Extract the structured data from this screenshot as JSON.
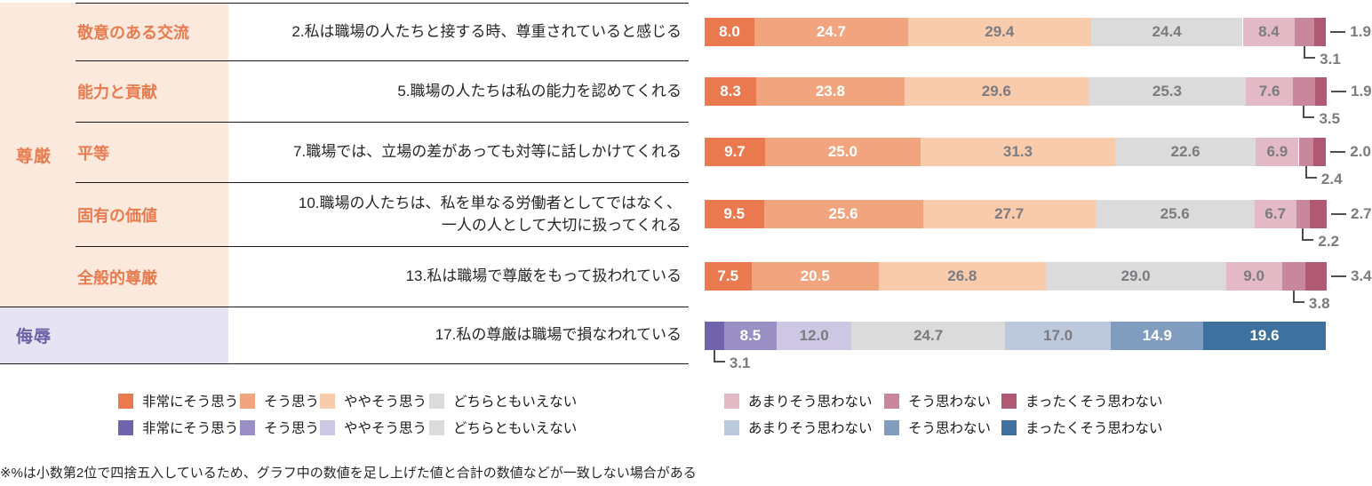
{
  "groups": [
    {
      "label": "尊厳",
      "text_color": "#E87B50",
      "bg_color": "#FBE9DD"
    },
    {
      "label": "侮辱",
      "text_color": "#6C5FA7",
      "bg_color": "#E6E3F2"
    }
  ],
  "chart_data": {
    "type": "bar",
    "orientation": "horizontal-stacked",
    "unit": "%",
    "answer_scale": [
      "非常にそう思う",
      "そう思う",
      "ややそう思う",
      "どちらともいえない",
      "あまりそう思わない",
      "そう思わない",
      "まったくそう思わない"
    ],
    "palettes": {
      "dignity": [
        "#EB7950",
        "#F2A47E",
        "#F8CBAD",
        "#DBDBDB",
        "#E2B9C4",
        "#C8879D",
        "#B15873"
      ],
      "insult": [
        "#7063AB",
        "#9A8FC5",
        "#CEC7E4",
        "#DBDBDB",
        "#BCC9DC",
        "#809CBF",
        "#3F719E"
      ]
    },
    "rows": [
      {
        "group": "尊厳",
        "subcategory": "敬意のある交流",
        "question": "2.私は職場の人たちと接する時、尊重されていると感じる",
        "palette": "dignity",
        "values": [
          8.0,
          24.7,
          29.4,
          24.4,
          8.4,
          3.1,
          1.9
        ],
        "callout_below_index": 5,
        "callout_right_index": 6
      },
      {
        "group": "尊厳",
        "subcategory": "能力と貢献",
        "question": "5.職場の人たちは私の能力を認めてくれる",
        "palette": "dignity",
        "values": [
          8.3,
          23.8,
          29.6,
          25.3,
          7.6,
          3.5,
          1.9
        ],
        "callout_below_index": 5,
        "callout_right_index": 6
      },
      {
        "group": "尊厳",
        "subcategory": "平等",
        "question": "7.職場では、立場の差があっても対等に話しかけてくれる",
        "palette": "dignity",
        "values": [
          9.7,
          25.0,
          31.3,
          22.6,
          6.9,
          2.4,
          2.0
        ],
        "callout_below_index": 5,
        "callout_right_index": 6
      },
      {
        "group": "尊厳",
        "subcategory": "固有の価値",
        "question": "10.職場の人たちは、私を単なる労働者としてではなく、\n一人の人として大切に扱ってくれる",
        "palette": "dignity",
        "values": [
          9.5,
          25.6,
          27.7,
          25.6,
          6.7,
          2.2,
          2.7
        ],
        "callout_below_index": 5,
        "callout_right_index": 6
      },
      {
        "group": "尊厳",
        "subcategory": "全般的尊厳",
        "question": "13.私は職場で尊厳をもって扱われている",
        "palette": "dignity",
        "values": [
          7.5,
          20.5,
          26.8,
          29.0,
          9.0,
          3.8,
          3.4
        ],
        "callout_below_index": 5,
        "callout_right_index": 6
      },
      {
        "group": "侮辱",
        "subcategory": "",
        "question": "17.私の尊厳は職場で損なわれている",
        "palette": "insult",
        "values": [
          3.1,
          8.5,
          12.0,
          24.7,
          17.0,
          14.9,
          19.6
        ],
        "callout_below_index": 0,
        "callout_right_index": null
      }
    ]
  },
  "legend": {
    "rows": [
      {
        "palette": "dignity"
      },
      {
        "palette": "insult"
      }
    ]
  },
  "footnote": "※%は小数第2位で四捨五入しているため、グラフ中の数値を足し上げた値と合計の数値などが一致しない場合がある"
}
